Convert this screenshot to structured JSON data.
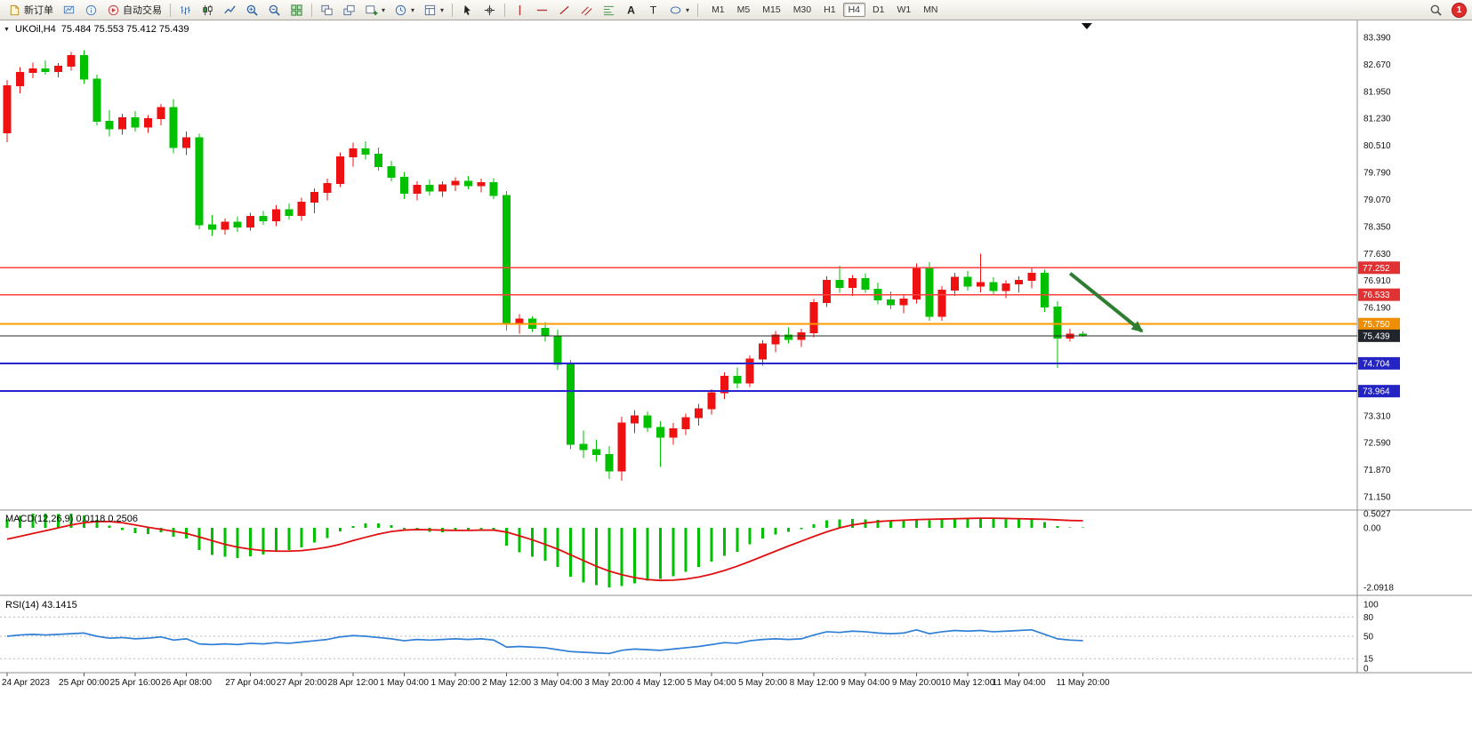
{
  "toolbar": {
    "items": [
      {
        "type": "button",
        "name": "new-order-button",
        "icon": "new-order-icon",
        "label": "新订单"
      },
      {
        "type": "button",
        "name": "profiles-button",
        "icon": "profiles-icon"
      },
      {
        "type": "button",
        "name": "data-window-button",
        "icon": "data-window-icon"
      },
      {
        "type": "button",
        "name": "autotrade-button",
        "icon": "autotrade-icon",
        "label": "自动交易"
      },
      {
        "type": "sep"
      },
      {
        "type": "button",
        "name": "bar-chart-button",
        "icon": "bar-chart-icon"
      },
      {
        "type": "button",
        "name": "candle-chart-button",
        "icon": "candle-chart-icon"
      },
      {
        "type": "button",
        "name": "line-chart-button",
        "icon": "line-chart-icon"
      },
      {
        "type": "button",
        "name": "zoom-in-button",
        "icon": "zoom-in-icon"
      },
      {
        "type": "button",
        "name": "zoom-out-button",
        "icon": "zoom-out-icon"
      },
      {
        "type": "button",
        "name": "tile-windows-button",
        "icon": "tile-windows-icon"
      },
      {
        "type": "sep"
      },
      {
        "type": "button",
        "name": "arrange-windows-button",
        "icon": "arrange-icon"
      },
      {
        "type": "button",
        "name": "cascade-windows-button",
        "icon": "cascade-icon"
      },
      {
        "type": "button",
        "name": "new-chart-button",
        "icon": "new-chart-icon",
        "dropdown": true
      },
      {
        "type": "button",
        "name": "periods-button",
        "icon": "clock-icon",
        "dropdown": true
      },
      {
        "type": "button",
        "name": "templates-button",
        "icon": "template-icon",
        "dropdown": true
      },
      {
        "type": "sep"
      },
      {
        "type": "button",
        "name": "cursor-button",
        "icon": "cursor-icon"
      },
      {
        "type": "button",
        "name": "crosshair-button",
        "icon": "crosshair-icon"
      },
      {
        "type": "sep"
      },
      {
        "type": "button",
        "name": "vertical-line-button",
        "icon": "vline-icon"
      },
      {
        "type": "button",
        "name": "horizontal-line-button",
        "icon": "hline-icon"
      },
      {
        "type": "button",
        "name": "trendline-button",
        "icon": "trendline-icon"
      },
      {
        "type": "button",
        "name": "channel-button",
        "icon": "channel-icon"
      },
      {
        "type": "button",
        "name": "fibonacci-button",
        "icon": "fibonacci-icon"
      },
      {
        "type": "button",
        "name": "text-button",
        "icon": "text-icon"
      },
      {
        "type": "button",
        "name": "label-button",
        "icon": "label-icon"
      },
      {
        "type": "button",
        "name": "shapes-button",
        "icon": "shapes-icon",
        "dropdown": true
      },
      {
        "type": "sep"
      }
    ],
    "timeframes": [
      "M1",
      "M5",
      "M15",
      "M30",
      "H1",
      "H4",
      "D1",
      "W1",
      "MN"
    ],
    "active_timeframe": "H4",
    "notification_badge": "1"
  },
  "chart": {
    "collapse_icon": "▼",
    "symbol_period": "UKOil,H4",
    "ohlc": "75.484 75.553 75.412 75.439"
  },
  "macd": {
    "label": "MACD(12,26,9) 0.0118 0.2506"
  },
  "rsi": {
    "label": "RSI(14) 43.1415"
  },
  "colors": {
    "up": "#ef1111",
    "down": "#00c100",
    "macd_hist": "#00c100",
    "macd_signal": "#e01010",
    "rsi_line": "#2f7fd6",
    "arrow": "#2e7d32",
    "resistance": "#ff4040",
    "support": "#2626cf",
    "level": "#ff9800",
    "bid": "#2a2a2a"
  },
  "chart_data": [
    {
      "type": "candlestick",
      "title": "UKOil H4",
      "ylim": [
        71.15,
        83.39
      ],
      "price_axis_ticks": [
        83.39,
        82.67,
        81.95,
        81.23,
        80.51,
        79.79,
        79.07,
        78.35,
        77.63,
        76.91,
        76.19,
        73.31,
        72.59,
        71.87,
        71.15
      ],
      "time_labels": [
        {
          "i": 0,
          "t": "24 Apr 2023"
        },
        {
          "i": 6,
          "t": "25 Apr 00:00"
        },
        {
          "i": 10,
          "t": "25 Apr 16:00"
        },
        {
          "i": 14,
          "t": "26 Apr 08:00"
        },
        {
          "i": 19,
          "t": "27 Apr 04:00"
        },
        {
          "i": 23,
          "t": "27 Apr 20:00"
        },
        {
          "i": 27,
          "t": "28 Apr 12:00"
        },
        {
          "i": 31,
          "t": "1 May 04:00"
        },
        {
          "i": 35,
          "t": "1 May 20:00"
        },
        {
          "i": 39,
          "t": "2 May 12:00"
        },
        {
          "i": 43,
          "t": "3 May 04:00"
        },
        {
          "i": 47,
          "t": "3 May 20:00"
        },
        {
          "i": 51,
          "t": "4 May 12:00"
        },
        {
          "i": 55,
          "t": "5 May 04:00"
        },
        {
          "i": 59,
          "t": "5 May 20:00"
        },
        {
          "i": 63,
          "t": "8 May 12:00"
        },
        {
          "i": 67,
          "t": "9 May 04:00"
        },
        {
          "i": 71,
          "t": "9 May 20:00"
        },
        {
          "i": 75,
          "t": "10 May 12:00"
        },
        {
          "i": 79,
          "t": "11 May 04:00"
        },
        {
          "i": 84,
          "t": "11 May 20:00"
        }
      ],
      "candles": [
        [
          80.85,
          82.25,
          80.6,
          82.1
        ],
        [
          82.1,
          82.6,
          81.9,
          82.45
        ],
        [
          82.45,
          82.72,
          82.3,
          82.55
        ],
        [
          82.55,
          82.78,
          82.4,
          82.48
        ],
        [
          82.48,
          82.7,
          82.32,
          82.62
        ],
        [
          82.62,
          83.0,
          82.5,
          82.9
        ],
        [
          82.9,
          83.05,
          82.15,
          82.28
        ],
        [
          82.28,
          82.4,
          81.05,
          81.15
        ],
        [
          81.15,
          81.45,
          80.75,
          80.95
        ],
        [
          80.95,
          81.35,
          80.8,
          81.25
        ],
        [
          81.25,
          81.42,
          80.88,
          81.0
        ],
        [
          81.0,
          81.32,
          80.85,
          81.22
        ],
        [
          81.22,
          81.62,
          81.05,
          81.52
        ],
        [
          81.52,
          81.75,
          80.3,
          80.45
        ],
        [
          80.45,
          80.88,
          80.25,
          80.72
        ],
        [
          80.72,
          80.82,
          78.28,
          78.4
        ],
        [
          78.4,
          78.66,
          78.1,
          78.28
        ],
        [
          78.28,
          78.56,
          78.14,
          78.46
        ],
        [
          78.46,
          78.62,
          78.2,
          78.34
        ],
        [
          78.34,
          78.72,
          78.24,
          78.62
        ],
        [
          78.62,
          78.76,
          78.4,
          78.5
        ],
        [
          78.5,
          78.92,
          78.36,
          78.8
        ],
        [
          78.8,
          78.96,
          78.54,
          78.64
        ],
        [
          78.64,
          79.12,
          78.5,
          79.0
        ],
        [
          79.0,
          79.36,
          78.7,
          79.26
        ],
        [
          79.26,
          79.62,
          79.04,
          79.5
        ],
        [
          79.5,
          80.32,
          79.4,
          80.2
        ],
        [
          80.2,
          80.58,
          79.95,
          80.42
        ],
        [
          80.42,
          80.62,
          80.14,
          80.28
        ],
        [
          80.28,
          80.46,
          79.84,
          79.94
        ],
        [
          79.94,
          80.1,
          79.55,
          79.66
        ],
        [
          79.66,
          79.8,
          79.08,
          79.24
        ],
        [
          79.24,
          79.56,
          79.05,
          79.45
        ],
        [
          79.45,
          79.6,
          79.18,
          79.3
        ],
        [
          79.3,
          79.56,
          79.14,
          79.46
        ],
        [
          79.46,
          79.66,
          79.3,
          79.56
        ],
        [
          79.56,
          79.7,
          79.34,
          79.44
        ],
        [
          79.44,
          79.62,
          79.26,
          79.52
        ],
        [
          79.52,
          79.64,
          79.08,
          79.18
        ],
        [
          79.18,
          79.3,
          75.58,
          75.76
        ],
        [
          75.76,
          76.02,
          75.5,
          75.88
        ],
        [
          75.88,
          75.96,
          75.54,
          75.64
        ],
        [
          75.64,
          75.8,
          75.28,
          75.44
        ],
        [
          75.44,
          75.6,
          74.52,
          74.68
        ],
        [
          74.68,
          74.8,
          72.42,
          72.55
        ],
        [
          72.55,
          72.92,
          72.18,
          72.4
        ],
        [
          72.4,
          72.66,
          72.08,
          72.28
        ],
        [
          72.28,
          72.5,
          71.62,
          71.84
        ],
        [
          71.84,
          73.28,
          71.58,
          73.12
        ],
        [
          73.12,
          73.46,
          72.84,
          73.3
        ],
        [
          73.3,
          73.42,
          72.88,
          73.0
        ],
        [
          73.0,
          73.16,
          71.94,
          72.74
        ],
        [
          72.74,
          73.12,
          72.54,
          72.96
        ],
        [
          72.96,
          73.36,
          72.8,
          73.26
        ],
        [
          73.26,
          73.62,
          73.04,
          73.5
        ],
        [
          73.5,
          74.02,
          73.34,
          73.92
        ],
        [
          73.92,
          74.46,
          73.76,
          74.36
        ],
        [
          74.36,
          74.6,
          74.04,
          74.18
        ],
        [
          74.18,
          74.92,
          74.08,
          74.82
        ],
        [
          74.82,
          75.32,
          74.64,
          75.22
        ],
        [
          75.22,
          75.56,
          75.0,
          75.46
        ],
        [
          75.46,
          75.66,
          75.24,
          75.34
        ],
        [
          75.34,
          75.62,
          75.14,
          75.52
        ],
        [
          75.52,
          76.42,
          75.4,
          76.32
        ],
        [
          76.32,
          77.02,
          76.2,
          76.92
        ],
        [
          76.92,
          77.3,
          76.58,
          76.72
        ],
        [
          76.72,
          77.06,
          76.5,
          76.96
        ],
        [
          76.96,
          77.1,
          76.58,
          76.68
        ],
        [
          76.68,
          76.86,
          76.28,
          76.4
        ],
        [
          76.4,
          76.62,
          76.14,
          76.26
        ],
        [
          76.26,
          76.52,
          76.04,
          76.42
        ],
        [
          76.42,
          77.36,
          76.3,
          77.24
        ],
        [
          77.24,
          77.4,
          75.84,
          75.96
        ],
        [
          75.96,
          76.76,
          75.84,
          76.66
        ],
        [
          76.66,
          77.12,
          76.5,
          77.0
        ],
        [
          77.0,
          77.16,
          76.64,
          76.76
        ],
        [
          76.76,
          77.63,
          76.6,
          76.86
        ],
        [
          76.86,
          77.0,
          76.54,
          76.64
        ],
        [
          76.64,
          76.92,
          76.44,
          76.82
        ],
        [
          76.82,
          77.02,
          76.6,
          76.92
        ],
        [
          76.92,
          77.26,
          76.7,
          77.1
        ],
        [
          77.1,
          77.2,
          76.08,
          76.2
        ],
        [
          76.2,
          76.36,
          74.58,
          75.38
        ],
        [
          75.38,
          75.62,
          75.28,
          75.48
        ],
        [
          75.484,
          75.553,
          75.412,
          75.439
        ]
      ],
      "hlines": [
        {
          "price": 77.252,
          "color": "#ff4040",
          "badge": "#e03232",
          "w": 1.5,
          "name": "resistance-line-1"
        },
        {
          "price": 76.533,
          "color": "#ff4040",
          "badge": "#e03232",
          "w": 1.5,
          "name": "resistance-line-2"
        },
        {
          "price": 75.75,
          "color": "#ff9800",
          "badge": "#ef8e00",
          "w": 2,
          "name": "orange-level-line"
        },
        {
          "price": 75.439,
          "color": "#2a2a2a",
          "badge": "#20242b",
          "w": 1.2,
          "name": "bid-price-line"
        },
        {
          "price": 74.704,
          "color": "#2626cf",
          "badge": "#2424c4",
          "w": 2,
          "name": "support-line-1"
        },
        {
          "price": 73.964,
          "color": "#2626cf",
          "badge": "#2424c4",
          "w": 2,
          "name": "support-line-2"
        }
      ],
      "arrow": {
        "bar_from": 83.0,
        "price_from": 77.1,
        "bar_to": 88.6,
        "price_to": 75.56
      },
      "top_marker_bar": 84.3,
      "current_price": 75.439
    },
    {
      "type": "bar",
      "title": "MACD(12,26,9)",
      "current": [
        0.0118,
        0.2506
      ],
      "axis_ticks": [
        {
          "v": 0.5027,
          "label": "0.5027"
        },
        {
          "v": 0,
          "label": "0.00"
        },
        {
          "v": -2.0918,
          "label": "-2.0918"
        }
      ],
      "values": [
        0.3,
        0.42,
        0.5,
        0.5,
        0.48,
        0.5,
        0.44,
        0.28,
        0.08,
        -0.08,
        -0.18,
        -0.22,
        -0.16,
        -0.32,
        -0.38,
        -0.78,
        -0.95,
        -1.02,
        -1.06,
        -1.0,
        -0.94,
        -0.85,
        -0.78,
        -0.68,
        -0.52,
        -0.36,
        -0.12,
        0.06,
        0.16,
        0.15,
        0.1,
        -0.04,
        -0.1,
        -0.14,
        -0.15,
        -0.1,
        -0.07,
        -0.04,
        -0.1,
        -0.62,
        -0.86,
        -1.02,
        -1.16,
        -1.38,
        -1.72,
        -1.92,
        -2.02,
        -2.09,
        -2.05,
        -1.96,
        -1.86,
        -1.8,
        -1.7,
        -1.55,
        -1.38,
        -1.18,
        -0.98,
        -0.84,
        -0.58,
        -0.38,
        -0.24,
        -0.14,
        -0.04,
        0.12,
        0.26,
        0.3,
        0.32,
        0.3,
        0.28,
        0.26,
        0.26,
        0.31,
        0.26,
        0.29,
        0.33,
        0.34,
        0.36,
        0.31,
        0.29,
        0.29,
        0.31,
        0.21,
        0.06,
        0.02,
        0.012
      ],
      "signal": [
        -0.4,
        -0.3,
        -0.2,
        -0.1,
        0.0,
        0.1,
        0.18,
        0.22,
        0.22,
        0.18,
        0.1,
        0.02,
        -0.05,
        -0.12,
        -0.2,
        -0.32,
        -0.45,
        -0.58,
        -0.68,
        -0.75,
        -0.8,
        -0.82,
        -0.82,
        -0.8,
        -0.75,
        -0.68,
        -0.58,
        -0.45,
        -0.33,
        -0.22,
        -0.13,
        -0.08,
        -0.06,
        -0.07,
        -0.08,
        -0.09,
        -0.09,
        -0.08,
        -0.08,
        -0.15,
        -0.28,
        -0.42,
        -0.58,
        -0.75,
        -0.95,
        -1.15,
        -1.35,
        -1.52,
        -1.65,
        -1.75,
        -1.82,
        -1.85,
        -1.84,
        -1.8,
        -1.73,
        -1.63,
        -1.5,
        -1.35,
        -1.18,
        -1.0,
        -0.82,
        -0.64,
        -0.47,
        -0.3,
        -0.14,
        0.0,
        0.1,
        0.17,
        0.22,
        0.25,
        0.27,
        0.29,
        0.3,
        0.31,
        0.32,
        0.33,
        0.34,
        0.34,
        0.33,
        0.32,
        0.31,
        0.3,
        0.28,
        0.26,
        0.2506
      ]
    },
    {
      "type": "line",
      "title": "RSI(14)",
      "current": 43.1415,
      "levels": [
        80,
        50,
        15
      ],
      "axis_ticks": [
        {
          "v": 100,
          "label": "100"
        },
        {
          "v": 80,
          "label": "80"
        },
        {
          "v": 50,
          "label": "50"
        },
        {
          "v": 15,
          "label": "15"
        },
        {
          "v": 0,
          "label": "0"
        }
      ],
      "values": [
        50,
        52,
        53,
        52,
        53,
        54,
        55,
        50,
        47,
        48,
        46,
        47,
        49,
        44,
        46,
        38,
        37,
        38,
        37,
        39,
        38,
        40,
        39,
        41,
        43,
        45,
        49,
        51,
        50,
        48,
        46,
        43,
        45,
        44,
        45,
        46,
        45,
        46,
        44,
        33,
        34,
        33,
        32,
        29,
        26,
        25,
        24,
        23,
        28,
        30,
        29,
        28,
        30,
        32,
        34,
        37,
        40,
        39,
        43,
        45,
        46,
        45,
        46,
        52,
        57,
        56,
        58,
        57,
        55,
        54,
        55,
        60,
        54,
        57,
        59,
        58,
        59,
        57,
        58,
        59,
        60,
        53,
        46,
        44,
        43.14
      ]
    }
  ]
}
